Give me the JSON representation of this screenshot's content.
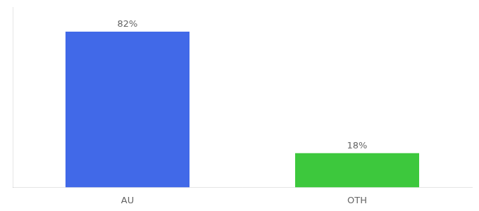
{
  "chart_data": {
    "type": "bar",
    "categories": [
      "AU",
      "OTH"
    ],
    "values": [
      82,
      18
    ],
    "colors": [
      "#4169e8",
      "#3dc83d"
    ],
    "value_labels": [
      "82%",
      "18%"
    ],
    "data_labels": true,
    "ylim": [
      0,
      95
    ],
    "grid": false,
    "tick_labels": "x"
  }
}
